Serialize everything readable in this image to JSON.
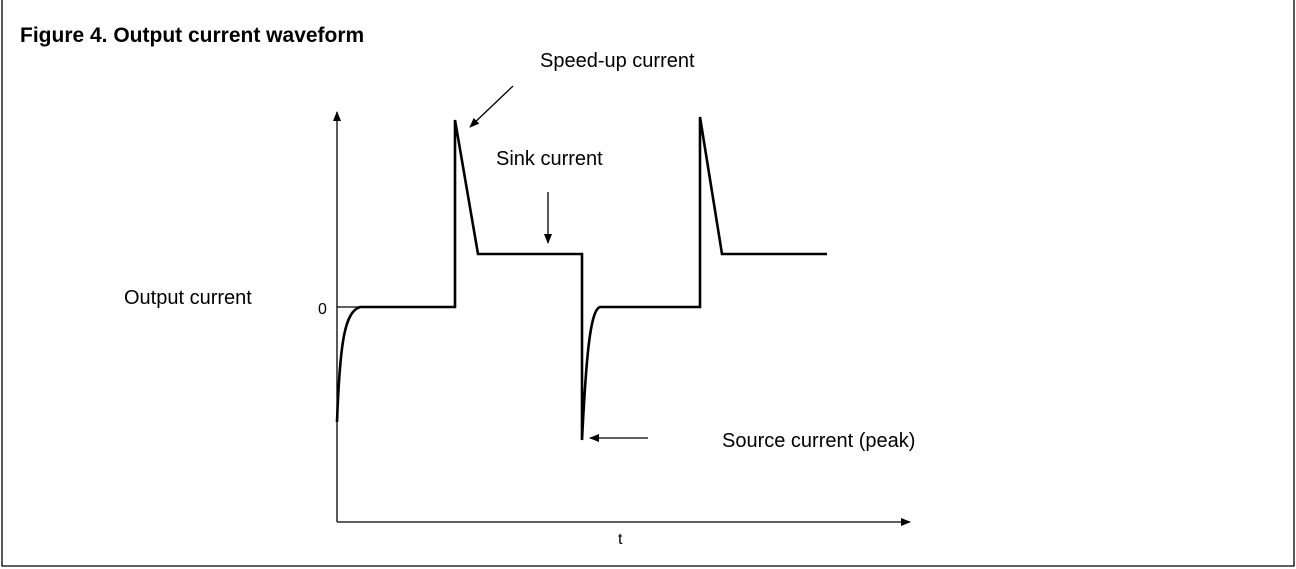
{
  "title": "Figure 4.  Output current waveform",
  "labels": {
    "speed_up": "Speed-up current",
    "sink": "Sink current",
    "y_axis": "Output current",
    "zero": "0",
    "source": "Source current (peak)",
    "x_axis": "t"
  }
}
